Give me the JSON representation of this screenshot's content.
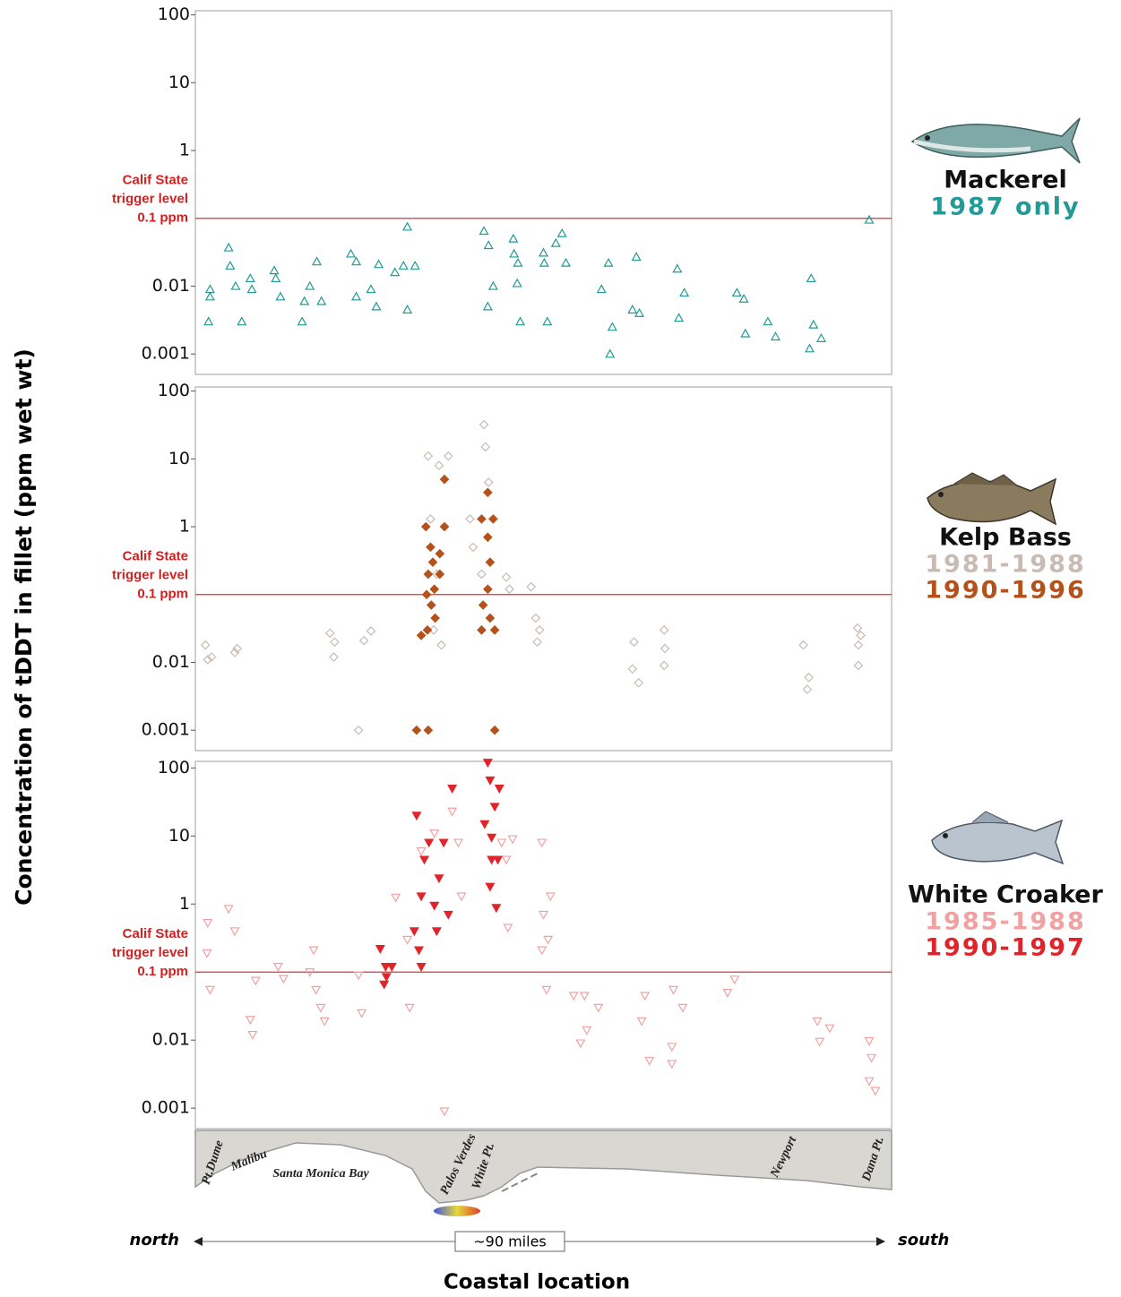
{
  "y_label": "Concentration of tDDT in fillet (ppm wet wt)",
  "x_label": "Coastal location",
  "map": {
    "places": [
      "Pt.Dume",
      "Malibu",
      "Santa Monica Bay",
      "Palos Verdes",
      "White Pt.",
      "Newport",
      "Dana Pt."
    ],
    "north": "north",
    "south": "south",
    "distance": "~90 miles"
  },
  "chart_data": [
    {
      "type": "scatter",
      "title": "Mackerel",
      "log_y": true,
      "xlim": [
        0,
        90
      ],
      "ylim": [
        0.0005,
        115
      ],
      "yticks": [
        100,
        10,
        1,
        0.01,
        0.001
      ],
      "threshold": {
        "value": 0.1,
        "color": "#e03030",
        "label": [
          "Calif State",
          "trigger level",
          "0.1 ppm"
        ]
      },
      "series": [
        {
          "name": "1987 only",
          "color": "#229a96",
          "marker": "triangle-up",
          "filled": false,
          "x": [
            1.9,
            1.9,
            1.7,
            4.3,
            4.5,
            5.2,
            6.0,
            7.1,
            7.3,
            10.2,
            10.4,
            11.0,
            13.8,
            14.1,
            14.8,
            15.7,
            16.3,
            20.1,
            20.8,
            20.8,
            22.7,
            23.4,
            23.7,
            25.8,
            26.9,
            27.4,
            27.4,
            28.4,
            37.3,
            37.9,
            37.8,
            38.5,
            41.1,
            41.2,
            41.6,
            41.7,
            42.0,
            45.0,
            45.1,
            45.5,
            46.6,
            47.4,
            47.9,
            52.5,
            53.4,
            53.6,
            53.9,
            56.5,
            57.0,
            57.4,
            62.3,
            62.5,
            63.2,
            70.0,
            70.9,
            71.1,
            74.0,
            75.0,
            79.6,
            79.9,
            79.4,
            80.9,
            87.1
          ],
          "values": [
            0.009,
            0.007,
            0.003,
            0.037,
            0.02,
            0.01,
            0.003,
            0.013,
            0.009,
            0.017,
            0.013,
            0.007,
            0.003,
            0.006,
            0.01,
            0.023,
            0.006,
            0.03,
            0.023,
            0.007,
            0.009,
            0.005,
            0.021,
            0.016,
            0.02,
            0.075,
            0.0045,
            0.02,
            0.065,
            0.04,
            0.005,
            0.01,
            0.05,
            0.03,
            0.011,
            0.022,
            0.003,
            0.031,
            0.022,
            0.003,
            0.043,
            0.06,
            0.022,
            0.009,
            0.022,
            0.001,
            0.0025,
            0.0045,
            0.027,
            0.004,
            0.018,
            0.0034,
            0.008,
            0.008,
            0.0065,
            0.002,
            0.003,
            0.0018,
            0.013,
            0.0027,
            0.0012,
            0.0017,
            0.095
          ]
        }
      ]
    },
    {
      "type": "scatter",
      "title": "Kelp Bass",
      "log_y": true,
      "xlim": [
        0,
        90
      ],
      "ylim": [
        0.0005,
        115
      ],
      "yticks": [
        100,
        10,
        1,
        0.01,
        0.001
      ],
      "threshold": {
        "value": 0.1,
        "color": "#e03030",
        "label": [
          "Calif State",
          "trigger level",
          "0.1 ppm"
        ]
      },
      "series": [
        {
          "name": "1981-1988",
          "color": "#c9bbb3",
          "marker": "diamond",
          "filled": false,
          "x": [
            1.3,
            1.6,
            2.1,
            5.1,
            5.4,
            17.4,
            18.0,
            17.9,
            21.1,
            21.8,
            22.7,
            30.1,
            31.5,
            32.7,
            30.4,
            31.2,
            31.8,
            30.8,
            37.3,
            37.5,
            37.9,
            35.5,
            35.9,
            37.0,
            40.2,
            40.6,
            43.4,
            44.0,
            44.2,
            44.5,
            56.7,
            56.5,
            57.3,
            60.6,
            60.7,
            60.6,
            78.6,
            79.3,
            79.1,
            85.6,
            85.7,
            85.7,
            86.0
          ],
          "values": [
            0.018,
            0.011,
            0.012,
            0.014,
            0.016,
            0.027,
            0.02,
            0.012,
            0.001,
            0.021,
            0.029,
            11,
            8,
            11,
            1.3,
            0.2,
            0.018,
            0.03,
            32,
            15,
            4.5,
            1.3,
            0.5,
            0.2,
            0.18,
            0.12,
            0.13,
            0.045,
            0.02,
            0.03,
            0.02,
            0.008,
            0.005,
            0.03,
            0.016,
            0.009,
            0.018,
            0.006,
            0.004,
            0.032,
            0.018,
            0.009,
            0.025
          ]
        },
        {
          "name": "1990-1996",
          "color": "#b5521c",
          "marker": "diamond",
          "filled": true,
          "x": [
            28.6,
            30.1,
            38.7,
            29.8,
            30.4,
            30.7,
            30.1,
            29.9,
            30.5,
            30.0,
            30.9,
            31.6,
            32.2,
            32.2,
            31.6,
            31.0,
            29.2,
            37.8,
            37.0,
            37.8,
            38.1,
            37.8,
            37.2,
            38.1,
            37.0,
            38.7,
            38.5
          ],
          "values": [
            0.001,
            0.001,
            0.001,
            1,
            0.5,
            0.3,
            0.2,
            0.1,
            0.07,
            0.03,
            0.12,
            0.4,
            5,
            1,
            0.2,
            0.045,
            0.025,
            3.2,
            1.3,
            0.7,
            0.3,
            0.12,
            0.07,
            0.045,
            0.03,
            0.03,
            1.3
          ]
        }
      ]
    },
    {
      "type": "scatter",
      "title": "White Croaker",
      "log_y": true,
      "xlim": [
        0,
        90
      ],
      "ylim": [
        0.0005,
        125
      ],
      "yticks": [
        100,
        10,
        1,
        0.01,
        0.001
      ],
      "threshold": {
        "value": 0.1,
        "color": "#e03030",
        "label": [
          "Calif State",
          "trigger level",
          "0.1 ppm"
        ]
      },
      "series": [
        {
          "name": "1985-1988",
          "color": "#f0a2a2",
          "marker": "triangle-down",
          "filled": false,
          "x": [
            1.6,
            1.5,
            1.9,
            4.3,
            5.1,
            7.1,
            7.4,
            7.8,
            10.7,
            11.4,
            15.3,
            15.6,
            16.2,
            16.7,
            14.8,
            21.5,
            21.1,
            25.9,
            27.4,
            27.7,
            29.2,
            30.9,
            32.2,
            33.2,
            34.0,
            34.4,
            39.6,
            40.2,
            41.0,
            40.4,
            44.8,
            45.0,
            44.8,
            45.6,
            45.4,
            45.9,
            48.9,
            50.3,
            49.8,
            50.6,
            52.1,
            58.1,
            57.7,
            58.7,
            61.8,
            63.0,
            61.6,
            61.6,
            68.8,
            69.7,
            80.4,
            80.7,
            82.0,
            87.1,
            87.4,
            87.1,
            87.9
          ],
          "values": [
            0.53,
            0.19,
            0.055,
            0.85,
            0.4,
            0.02,
            0.012,
            0.075,
            0.12,
            0.08,
            0.21,
            0.055,
            0.03,
            0.019,
            0.1,
            0.025,
            0.09,
            1.25,
            0.3,
            0.03,
            6,
            11,
            0.0009,
            23,
            8,
            1.3,
            8,
            4.5,
            9,
            0.45,
            8,
            0.7,
            0.21,
            0.3,
            0.055,
            1.3,
            0.045,
            0.045,
            0.009,
            0.014,
            0.03,
            0.045,
            0.019,
            0.005,
            0.055,
            0.03,
            0.008,
            0.0045,
            0.05,
            0.078,
            0.019,
            0.0095,
            0.015,
            0.0097,
            0.0055,
            0.0025,
            0.0018
          ]
        },
        {
          "name": "1990-1997",
          "color": "#e0242a",
          "marker": "triangle-down",
          "filled": true,
          "x": [
            23.9,
            24.6,
            24.4,
            24.7,
            25.4,
            28.6,
            29.2,
            28.9,
            28.3,
            29.2,
            29.6,
            30.2,
            30.9,
            31.2,
            31.5,
            32.1,
            32.7,
            33.2,
            37.8,
            38.1,
            38.7,
            37.4,
            38.3,
            38.1,
            38.9,
            38.3,
            39.3,
            39.1
          ],
          "values": [
            0.22,
            0.12,
            0.066,
            0.085,
            0.12,
            20,
            1.3,
            0.21,
            0.4,
            0.12,
            4.5,
            8,
            0.95,
            0.4,
            2.4,
            8,
            0.7,
            50,
            120,
            66,
            27,
            15,
            4.5,
            1.8,
            0.88,
            9.5,
            50,
            4.5
          ]
        }
      ]
    }
  ]
}
